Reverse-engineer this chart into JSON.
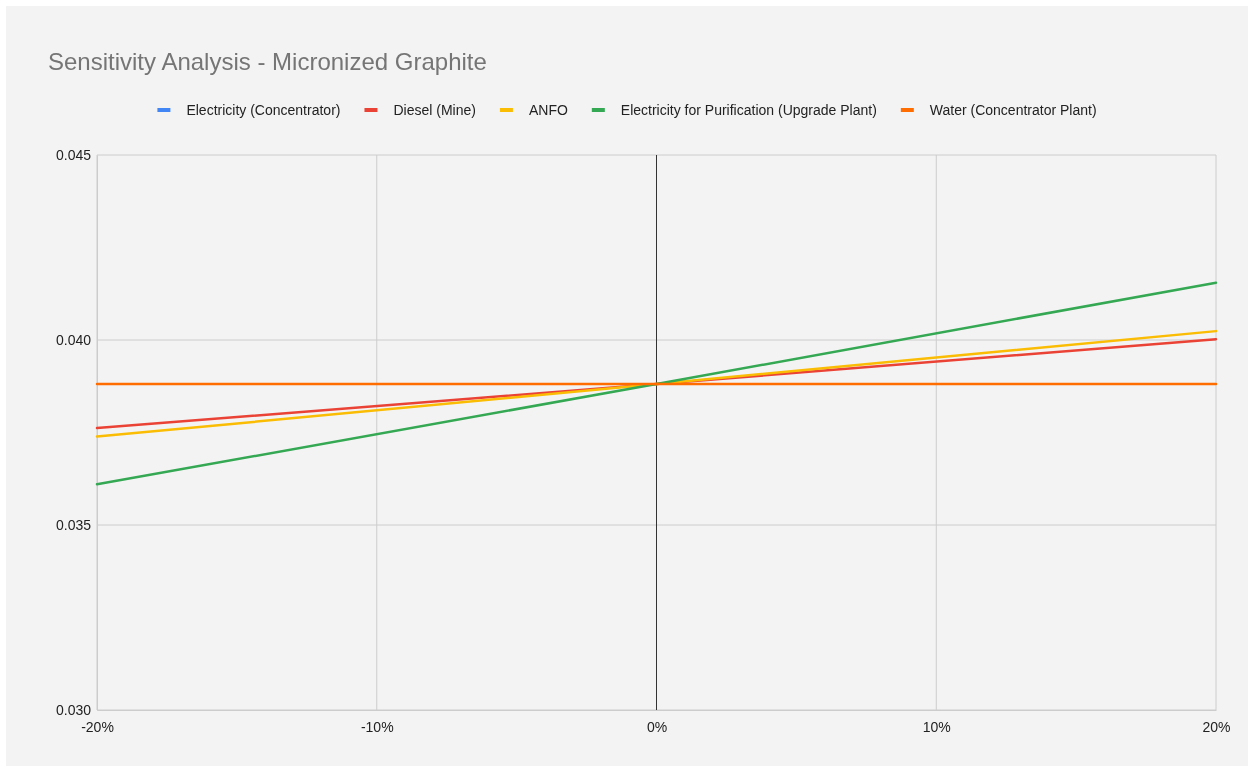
{
  "chart_data": {
    "type": "line",
    "title": "Sensitivity Analysis - Micronized Graphite",
    "x": [
      -20,
      0,
      20
    ],
    "series": [
      {
        "name": "Electricity (Concentrator)",
        "color": "#4285f4",
        "values": [
          null,
          null,
          null
        ]
      },
      {
        "name": "Diesel (Mine)",
        "color": "#ea4335",
        "values": [
          0.03762,
          0.03881,
          0.04002
        ]
      },
      {
        "name": "ANFO",
        "color": "#fbbc04",
        "values": [
          0.03739,
          0.03881,
          0.04024
        ]
      },
      {
        "name": "Electricity for Purification (Upgrade Plant)",
        "color": "#34a853",
        "values": [
          0.0361,
          0.03881,
          0.04155
        ]
      },
      {
        "name": "Water (Concentrator Plant)",
        "color": "#ff6d01",
        "values": [
          0.03881,
          0.03881,
          0.03881
        ]
      }
    ],
    "xlim": [
      -20,
      20
    ],
    "xticks": [
      {
        "value": -20,
        "label": "-20%"
      },
      {
        "value": -10,
        "label": "-10%"
      },
      {
        "value": 0,
        "label": "0%"
      },
      {
        "value": 10,
        "label": "10%"
      },
      {
        "value": 20,
        "label": "20%"
      }
    ],
    "ylim": [
      0.03,
      0.045
    ],
    "yticks": [
      {
        "value": 0.03,
        "label": "0.030"
      },
      {
        "value": 0.035,
        "label": "0.035"
      },
      {
        "value": 0.04,
        "label": "0.040"
      },
      {
        "value": 0.045,
        "label": "0.045"
      }
    ],
    "grid": true,
    "legend": "top",
    "line_style": "solid",
    "marker": "none"
  }
}
